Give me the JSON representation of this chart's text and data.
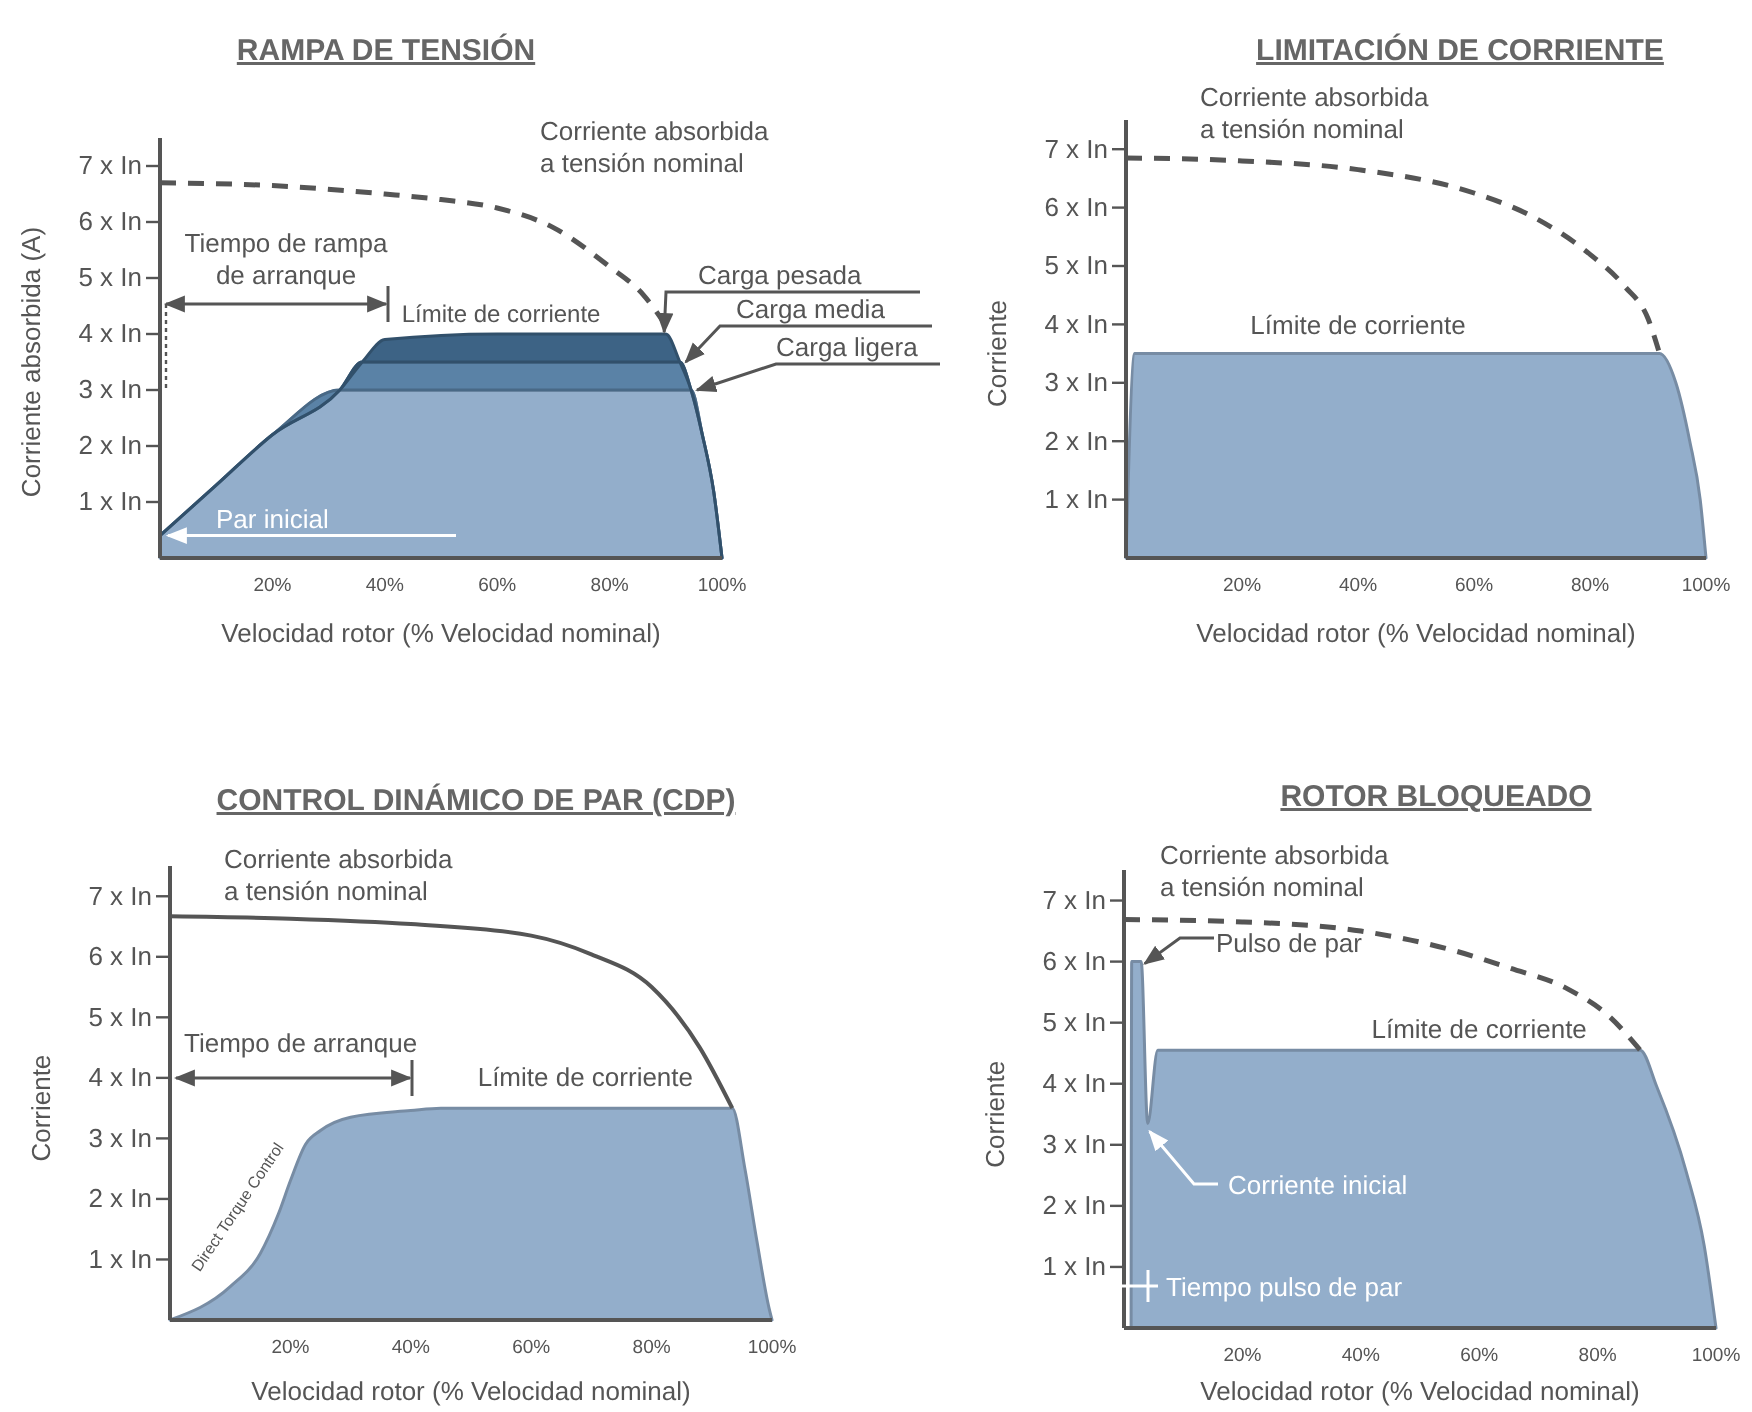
{
  "chart_data": [
    {
      "type": "area",
      "title": "RAMPA DE TENSIÓN",
      "xlabel": "Velocidad rotor (% Velocidad nominal)",
      "ylabel": "Corriente absorbida (A)",
      "xlim": [
        0,
        100
      ],
      "ylim": [
        0,
        7.5
      ],
      "xticks": [
        {
          "value": 20,
          "label": "20%"
        },
        {
          "value": 40,
          "label": "40%"
        },
        {
          "value": 60,
          "label": "60%"
        },
        {
          "value": 80,
          "label": "80%"
        },
        {
          "value": 100,
          "label": "100%"
        }
      ],
      "yticks": [
        {
          "value": 1,
          "label": "1 x In"
        },
        {
          "value": 2,
          "label": "2 x In"
        },
        {
          "value": 3,
          "label": "3 x In"
        },
        {
          "value": 4,
          "label": "4 x In"
        },
        {
          "value": 5,
          "label": "5 x In"
        },
        {
          "value": 6,
          "label": "6 x In"
        },
        {
          "value": 7,
          "label": "7 x In"
        }
      ],
      "stacked": true,
      "series": [
        {
          "color": "#93aecb",
          "x": [
            0,
            10,
            20,
            32,
            36,
            40,
            60,
            80,
            90,
            92.5,
            94.5,
            96.5,
            98.5,
            100
          ],
          "values": [
            0.4,
            1.3,
            2.2,
            3,
            3,
            3,
            3,
            3,
            3,
            3,
            3,
            2.2,
            1.2,
            0
          ]
        },
        {
          "color": "#5a82a6",
          "x": [
            0,
            10,
            20,
            32,
            36,
            40,
            60,
            80,
            90,
            92.5,
            94.5,
            96.5,
            98.5,
            100
          ],
          "values": [
            0,
            0,
            0,
            0,
            0.5,
            0.5,
            0.5,
            0.5,
            0.5,
            0.5,
            0,
            0,
            0,
            0
          ]
        },
        {
          "color": "#3d6385",
          "x": [
            0,
            10,
            20,
            32,
            36,
            40,
            60,
            80,
            90,
            92.5,
            94.5,
            96.5,
            98.5,
            100
          ],
          "values": [
            0,
            0,
            0,
            0,
            0,
            0.4,
            0.5,
            0.5,
            0.5,
            0,
            0,
            0,
            0,
            0
          ]
        },
        {
          "type": "line",
          "color": "#555555",
          "line_style": "dashed",
          "x": [
            0,
            20,
            40,
            50,
            60,
            70,
            80,
            86,
            91
          ],
          "values": [
            6.7,
            6.65,
            6.5,
            6.4,
            6.25,
            5.9,
            5.2,
            4.7,
            4
          ]
        }
      ],
      "annotations": [
        "Corriente absorbida\na tensión nominal",
        "Tiempo de rampa\nde arranque",
        {
          "text": "Límite de corriente",
          "x": 43,
          "y": 4
        },
        {
          "text": "Carga pesada",
          "x": 89,
          "y": 4
        },
        {
          "text": "Carga media",
          "x": 92.5,
          "y": 3.5
        },
        {
          "text": "Carga ligera",
          "x": 94.5,
          "y": 3
        },
        {
          "text": "Par inicial",
          "x": 0,
          "y": 0.4
        }
      ]
    },
    {
      "type": "area",
      "title": "LIMITACIÓN DE CORRIENTE",
      "xlabel": "Velocidad rotor (% Velocidad nominal)",
      "ylabel": "Corriente",
      "xlim": [
        0,
        100
      ],
      "ylim": [
        0,
        7.5
      ],
      "xticks": [
        {
          "value": 20,
          "label": "20%"
        },
        {
          "value": 40,
          "label": "40%"
        },
        {
          "value": 60,
          "label": "60%"
        },
        {
          "value": 80,
          "label": "80%"
        },
        {
          "value": 100,
          "label": "100%"
        }
      ],
      "yticks": [
        {
          "value": 1,
          "label": "1 x In"
        },
        {
          "value": 2,
          "label": "2 x In"
        },
        {
          "value": 3,
          "label": "3 x In"
        },
        {
          "value": 4,
          "label": "4 x In"
        },
        {
          "value": 5,
          "label": "5 x In"
        },
        {
          "value": 6,
          "label": "6 x In"
        },
        {
          "value": 7,
          "label": "7 x In"
        }
      ],
      "series": [
        {
          "color": "#93aecb",
          "x": [
            0,
            1.5,
            50,
            92,
            94.8,
            97.2,
            99,
            100
          ],
          "values": [
            0,
            3.5,
            3.5,
            3.5,
            3,
            2,
            1,
            0
          ]
        },
        {
          "type": "line",
          "color": "#555555",
          "line_style": "dashed",
          "x": [
            0,
            20,
            40,
            60,
            70,
            80,
            86,
            90,
            92
          ],
          "values": [
            6.85,
            6.8,
            6.65,
            6.25,
            5.85,
            5.2,
            4.65,
            4.1,
            3.5
          ]
        }
      ],
      "annotations": [
        "Corriente absorbida\na tensión nominal",
        {
          "text": "Límite de corriente",
          "x": 40,
          "y": 3.5
        }
      ]
    },
    {
      "type": "area",
      "title": "CONTROL DINÁMICO DE PAR (CDP)",
      "xlabel": "Velocidad rotor (% Velocidad nominal)",
      "ylabel": "Corriente",
      "xlim": [
        0,
        100
      ],
      "ylim": [
        0,
        7.5
      ],
      "xticks": [
        {
          "value": 20,
          "label": "20%"
        },
        {
          "value": 40,
          "label": "40%"
        },
        {
          "value": 60,
          "label": "60%"
        },
        {
          "value": 80,
          "label": "80%"
        },
        {
          "value": 100,
          "label": "100%"
        }
      ],
      "yticks": [
        {
          "value": 1,
          "label": "1 x In"
        },
        {
          "value": 2,
          "label": "2 x In"
        },
        {
          "value": 3,
          "label": "3 x In"
        },
        {
          "value": 4,
          "label": "4 x In"
        },
        {
          "value": 5,
          "label": "5 x In"
        },
        {
          "value": 6,
          "label": "6 x In"
        },
        {
          "value": 7,
          "label": "7 x In"
        }
      ],
      "series": [
        {
          "color": "#93aecb",
          "x": [
            0,
            10,
            15,
            18,
            20,
            22.5,
            25,
            30,
            40,
            45,
            60,
            80,
            93.4,
            95.5,
            97.5,
            99.5,
            100
          ],
          "values": [
            0,
            0.55,
            1.1,
            1.75,
            2.3,
            2.9,
            3.13,
            3.35,
            3.46,
            3.5,
            3.5,
            3.5,
            3.5,
            2.5,
            1.3,
            0.2,
            0
          ]
        },
        {
          "type": "line",
          "color": "#555555",
          "line_style": "solid",
          "x": [
            0,
            20,
            40,
            60,
            70,
            80,
            88,
            93.4
          ],
          "values": [
            6.67,
            6.63,
            6.54,
            6.35,
            6.04,
            5.5,
            4.5,
            3.5
          ]
        }
      ],
      "annotations": [
        "Corriente absorbida\na tensión nominal",
        "Tiempo de arranque",
        {
          "text": "Límite de corriente",
          "x": 69,
          "y": 3.5
        },
        "Direct Torque Control"
      ]
    },
    {
      "type": "area",
      "title": "ROTOR BLOQUEADO",
      "xlabel": "Velocidad rotor (% Velocidad nominal)",
      "ylabel": "Corriente",
      "xlim": [
        0,
        100
      ],
      "ylim": [
        0,
        7.5
      ],
      "xticks": [
        {
          "value": 20,
          "label": "20%"
        },
        {
          "value": 40,
          "label": "40%"
        },
        {
          "value": 60,
          "label": "60%"
        },
        {
          "value": 80,
          "label": "80%"
        },
        {
          "value": 100,
          "label": "100%"
        }
      ],
      "yticks": [
        {
          "value": 1,
          "label": "1 x In"
        },
        {
          "value": 2,
          "label": "2 x In"
        },
        {
          "value": 3,
          "label": "3 x In"
        },
        {
          "value": 4,
          "label": "4 x In"
        },
        {
          "value": 5,
          "label": "5 x In"
        },
        {
          "value": 6,
          "label": "6 x In"
        },
        {
          "value": 7,
          "label": "7 x In"
        }
      ],
      "series": [
        {
          "color": "#93aecb",
          "x": [
            1.2,
            1.3,
            2.9,
            4,
            5.7,
            50,
            87.2,
            90,
            95,
            98,
            100
          ],
          "values": [
            0,
            6,
            6,
            3.35,
            4.55,
            4.55,
            4.55,
            3.95,
            2.55,
            1.35,
            0
          ]
        },
        {
          "type": "line",
          "color": "#555555",
          "line_style": "dashed",
          "x": [
            0,
            20,
            40,
            55,
            65,
            75,
            82,
            87.2
          ],
          "values": [
            6.69,
            6.65,
            6.5,
            6.2,
            5.9,
            5.55,
            5.1,
            4.55
          ]
        }
      ],
      "annotations": [
        "Corriente absorbida\na tensión nominal",
        {
          "text": "Pulso de par",
          "x": 2.5,
          "y": 6
        },
        {
          "text": "Límite de corriente",
          "x": 60,
          "y": 4.55
        },
        {
          "text": "Corriente inicial",
          "x": 4,
          "y": 3.35
        },
        "Tiempo pulso de par"
      ]
    }
  ]
}
